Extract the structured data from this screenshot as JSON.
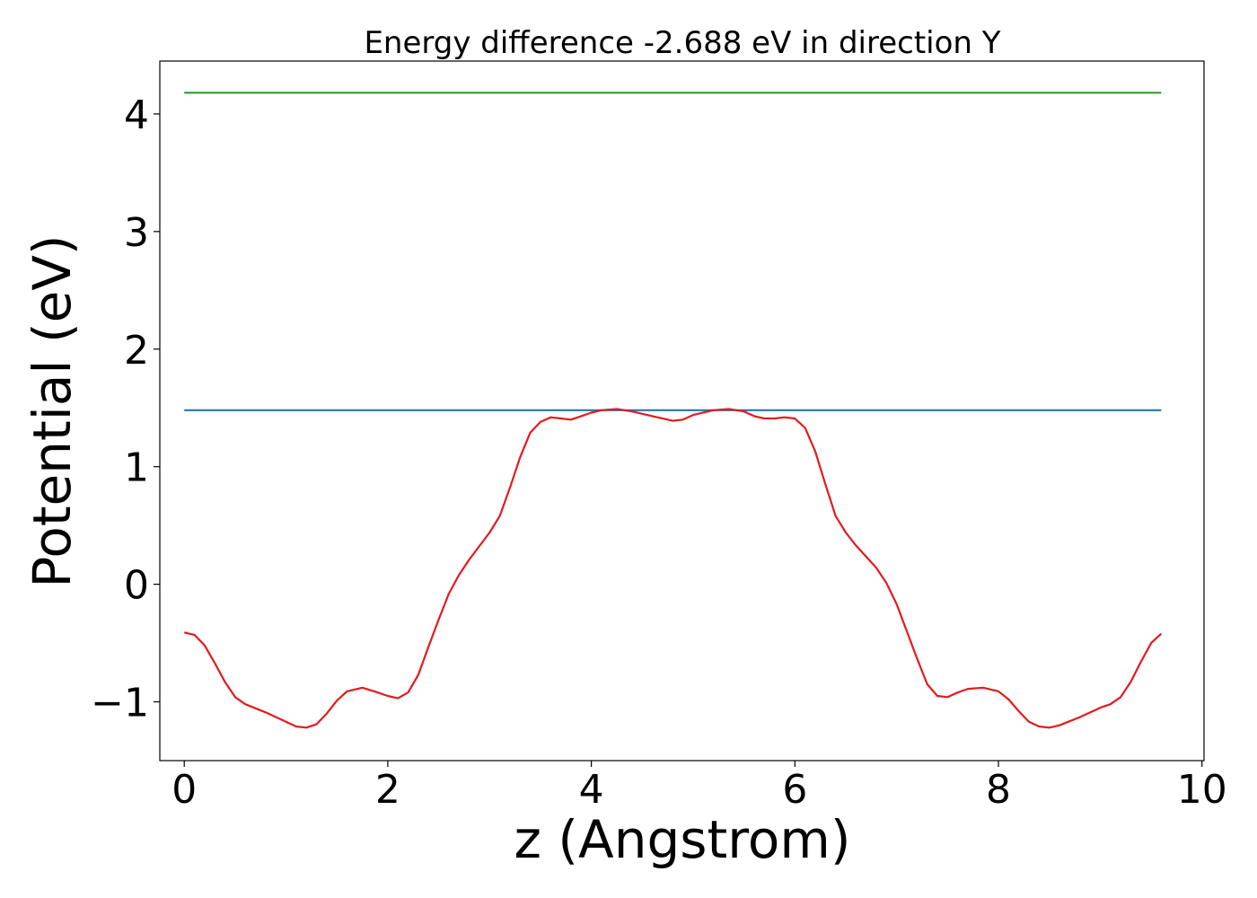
{
  "chart_data": {
    "type": "line",
    "title": "Energy difference -2.688 eV in direction Y",
    "xlabel": "z (Angstrom)",
    "ylabel": "Potential (eV)",
    "xlim": [
      -0.24,
      10.02
    ],
    "ylim": [
      -1.5,
      4.45
    ],
    "x_ticks": [
      0,
      2,
      4,
      6,
      8,
      10
    ],
    "x_tick_labels": [
      "0",
      "2",
      "4",
      "6",
      "8",
      "10"
    ],
    "y_ticks": [
      -1,
      0,
      1,
      2,
      3,
      4
    ],
    "y_tick_labels": [
      "−1",
      "0",
      "1",
      "2",
      "3",
      "4"
    ],
    "grid": false,
    "legend": "none",
    "series": [
      {
        "color": "#2ca02c",
        "x": [
          0,
          9.6
        ],
        "y": [
          4.18,
          4.18
        ]
      },
      {
        "color": "#1f77b4",
        "x": [
          0,
          9.6
        ],
        "y": [
          1.48,
          1.48
        ]
      },
      {
        "color": "#e41a1c",
        "x": [
          0,
          0.1,
          0.2,
          0.3,
          0.4,
          0.5,
          0.6,
          0.8,
          1.0,
          1.1,
          1.2,
          1.3,
          1.4,
          1.5,
          1.6,
          1.75,
          1.9,
          2.0,
          2.1,
          2.2,
          2.3,
          2.4,
          2.5,
          2.6,
          2.7,
          2.8,
          3.0,
          3.1,
          3.2,
          3.3,
          3.4,
          3.5,
          3.6,
          3.7,
          3.8,
          3.9,
          4.0,
          4.1,
          4.25,
          4.4,
          4.6,
          4.8,
          4.9,
          5.0,
          5.2,
          5.35,
          5.5,
          5.6,
          5.7,
          5.8,
          5.9,
          6.0,
          6.1,
          6.2,
          6.3,
          6.4,
          6.5,
          6.6,
          6.8,
          6.9,
          7.0,
          7.1,
          7.2,
          7.3,
          7.4,
          7.5,
          7.6,
          7.7,
          7.85,
          8.0,
          8.1,
          8.2,
          8.3,
          8.4,
          8.5,
          8.6,
          8.8,
          9.0,
          9.1,
          9.2,
          9.3,
          9.4,
          9.5,
          9.6
        ],
        "y": [
          -0.41,
          -0.43,
          -0.52,
          -0.67,
          -0.83,
          -0.96,
          -1.02,
          -1.09,
          -1.17,
          -1.21,
          -1.22,
          -1.19,
          -1.1,
          -0.99,
          -0.91,
          -0.88,
          -0.92,
          -0.95,
          -0.97,
          -0.92,
          -0.77,
          -0.53,
          -0.3,
          -0.08,
          0.08,
          0.21,
          0.44,
          0.58,
          0.82,
          1.08,
          1.29,
          1.38,
          1.42,
          1.41,
          1.4,
          1.43,
          1.46,
          1.48,
          1.49,
          1.47,
          1.43,
          1.39,
          1.4,
          1.44,
          1.48,
          1.49,
          1.47,
          1.43,
          1.41,
          1.41,
          1.42,
          1.41,
          1.33,
          1.13,
          0.85,
          0.58,
          0.44,
          0.33,
          0.14,
          0.01,
          -0.17,
          -0.4,
          -0.63,
          -0.85,
          -0.95,
          -0.96,
          -0.92,
          -0.89,
          -0.88,
          -0.91,
          -0.98,
          -1.08,
          -1.17,
          -1.21,
          -1.22,
          -1.2,
          -1.13,
          -1.05,
          -1.02,
          -0.96,
          -0.83,
          -0.66,
          -0.5,
          -0.42
        ]
      }
    ]
  }
}
